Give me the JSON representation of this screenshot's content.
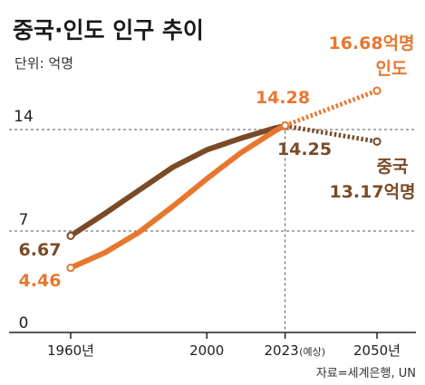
{
  "header": {
    "title": "중국·인도 인구 추이",
    "unit": "단위: 억명"
  },
  "source": "자료=세계은행, UN",
  "colors": {
    "china": "#7a4a26",
    "india": "#e7772f",
    "grid": "#555555",
    "axis": "#222222"
  },
  "chart_data": {
    "type": "line",
    "title": "중국·인도 인구 추이",
    "ylabel": "단위: 억명",
    "ylim": [
      0,
      17
    ],
    "yticks": [
      {
        "value": 0,
        "label": "0"
      },
      {
        "value": 7,
        "label": "7"
      },
      {
        "value": 14,
        "label": "14"
      }
    ],
    "xlim": [
      1960,
      2050
    ],
    "xticks": [
      {
        "value": 1960,
        "label": "1960년",
        "note": ""
      },
      {
        "value": 2000,
        "label": "2000",
        "note": ""
      },
      {
        "value": 2023,
        "label": "2023",
        "note": "(예상)"
      },
      {
        "value": 2050,
        "label": "2050년",
        "note": ""
      }
    ],
    "forecast_from": 2023,
    "series": [
      {
        "name": "중국",
        "color": "#7a4a26",
        "points": [
          [
            1960,
            6.67
          ],
          [
            1970,
            8.2
          ],
          [
            1980,
            9.8
          ],
          [
            1990,
            11.4
          ],
          [
            2000,
            12.6
          ],
          [
            2010,
            13.4
          ],
          [
            2020,
            14.1
          ],
          [
            2023,
            14.25
          ],
          [
            2050,
            13.17
          ]
        ],
        "labels": [
          {
            "text": "6.67",
            "x": 1960,
            "y": 6.67
          },
          {
            "text": "14.25",
            "x": 2023,
            "y": 14.25
          },
          {
            "text": "중국",
            "x": 2050,
            "y": 13.17
          },
          {
            "text": "13.17억명",
            "x": 2050,
            "y": 13.17
          }
        ]
      },
      {
        "name": "인도",
        "color": "#e7772f",
        "points": [
          [
            1960,
            4.46
          ],
          [
            1970,
            5.5
          ],
          [
            1980,
            6.9
          ],
          [
            1990,
            8.7
          ],
          [
            2000,
            10.6
          ],
          [
            2010,
            12.4
          ],
          [
            2020,
            13.9
          ],
          [
            2023,
            14.28
          ],
          [
            2050,
            16.68
          ]
        ],
        "labels": [
          {
            "text": "4.46",
            "x": 1960,
            "y": 4.46
          },
          {
            "text": "14.28",
            "x": 2023,
            "y": 14.28
          },
          {
            "text": "16.68억명",
            "x": 2050,
            "y": 16.68
          },
          {
            "text": "인도",
            "x": 2050,
            "y": 16.68
          }
        ]
      }
    ]
  }
}
